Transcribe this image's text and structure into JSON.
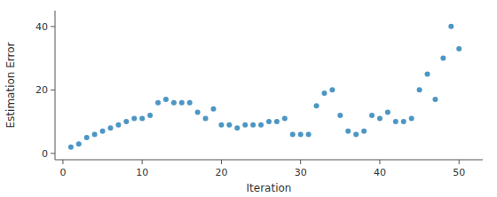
{
  "chart_data": {
    "type": "scatter",
    "x": [
      1,
      2,
      3,
      4,
      5,
      6,
      7,
      8,
      9,
      10,
      11,
      12,
      13,
      14,
      15,
      16,
      17,
      18,
      19,
      20,
      21,
      22,
      23,
      24,
      25,
      26,
      27,
      28,
      29,
      30,
      31,
      32,
      33,
      34,
      35,
      36,
      37,
      38,
      39,
      40,
      41,
      42,
      43,
      44,
      45,
      46,
      47,
      48,
      49,
      50
    ],
    "values": [
      2,
      3,
      5,
      6,
      7,
      8,
      9,
      10,
      11,
      11,
      12,
      16,
      17,
      16,
      16,
      16,
      13,
      11,
      14,
      9,
      9,
      8,
      9,
      9,
      9,
      10,
      10,
      11,
      6,
      6,
      6,
      15,
      19,
      20,
      12,
      7,
      6,
      7,
      12,
      11,
      13,
      10,
      10,
      11,
      20,
      25,
      17,
      30,
      40,
      33
    ],
    "color": "#4c96c4",
    "xlabel": "Iteration",
    "ylabel": "Estimation Error",
    "xlim": [
      -1,
      53
    ],
    "ylim": [
      -2,
      45
    ],
    "xticks": [
      0,
      10,
      20,
      30,
      40,
      50
    ],
    "yticks": [
      0,
      20,
      40
    ]
  }
}
